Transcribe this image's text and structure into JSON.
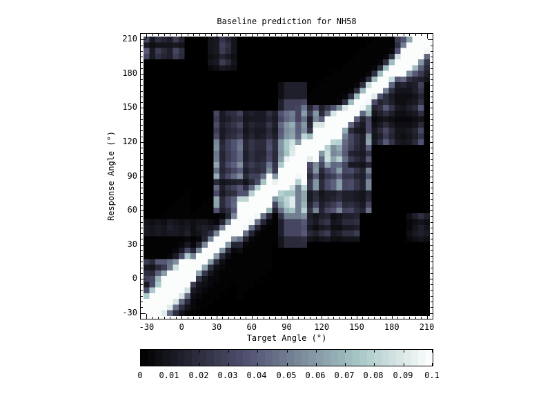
{
  "chart_data": {
    "type": "heatmap",
    "title": "Baseline prediction for NH58",
    "xlabel": "Target Angle (°)",
    "ylabel": "Response Angle (°)",
    "axis_range": [
      -35,
      215
    ],
    "bin_centers": {
      "min": -30,
      "max": 210,
      "step": 5,
      "count": 49
    },
    "major_ticks": [
      -30,
      0,
      30,
      60,
      90,
      120,
      150,
      180,
      210
    ],
    "minor_tick_step": 5,
    "value_range": [
      0,
      0.1
    ],
    "grid": false,
    "legend": "colorbar-bottom",
    "colormap": {
      "name": "bone",
      "levels": 40,
      "stops": [
        [
          0.0,
          0.0,
          0.0,
          0.0
        ],
        [
          0.365079,
          0.319444,
          0.319444,
          0.444444
        ],
        [
          0.746032,
          0.652778,
          0.777778,
          0.777778
        ],
        [
          1.0,
          1.0,
          1.0,
          1.0
        ]
      ]
    },
    "colorbar": {
      "tick_values": [
        0,
        0.01,
        0.02,
        0.03,
        0.04,
        0.05,
        0.06,
        0.07,
        0.08,
        0.09,
        0.1
      ],
      "tick_labels": [
        "0",
        "0.01",
        "0.02",
        "0.03",
        "0.04",
        "0.05",
        "0.06",
        "0.07",
        "0.08",
        "0.09",
        "0.1"
      ]
    },
    "model": {
      "note": "synthesis of the 49x49 probability matrix: bright identity ridge response=target plus clutter regions",
      "ridge": [
        {
          "t0": -35.0,
          "t1": 7.5,
          "amp": 0.21,
          "sigma": 10.5,
          "offset": 0
        },
        {
          "t0": 7.5,
          "t1": 47.5,
          "amp": 0.15,
          "sigma": 7.0,
          "offset": 0
        },
        {
          "t0": 47.5,
          "t1": 77.5,
          "amp": 0.19,
          "sigma": 9.5,
          "offset": 1
        },
        {
          "t0": 77.5,
          "t1": 97.5,
          "amp": 0.115,
          "sigma": 6.5,
          "offset": 0
        },
        {
          "t0": 97.5,
          "t1": 132.5,
          "amp": 0.165,
          "sigma": 7.0,
          "offset": 4
        },
        {
          "t0": 132.5,
          "t1": 187.5,
          "amp": 0.15,
          "sigma": 6.5,
          "offset": 2
        },
        {
          "t0": 187.5,
          "t1": 215.0,
          "amp": 0.185,
          "sigma": 8.0,
          "offset": 0
        }
      ],
      "lower_shoulder": {
        "t_max": 55,
        "depth": 42,
        "amp": 0.032
      },
      "column": {
        "t0": 88,
        "t1": 107,
        "feather": 7.5,
        "feather_gain": 0.45,
        "bands": [
          {
            "r0": 160,
            "r1": 175,
            "v": 0.015
          },
          {
            "r0": 140,
            "r1": 160,
            "v": 0.03
          },
          {
            "r0": 125,
            "r1": 140,
            "v": 0.042
          },
          {
            "r0": 110,
            "r1": 125,
            "v": 0.05
          },
          {
            "r0": 97,
            "r1": 110,
            "v": 0.06
          },
          {
            "r0": 85,
            "r1": 97,
            "v": 0.075
          },
          {
            "r0": 55,
            "r1": 85,
            "v": 0.05
          },
          {
            "r0": 40,
            "r1": 55,
            "v": 0.032
          },
          {
            "r0": 28,
            "r1": 40,
            "v": 0.018
          }
        ]
      },
      "clutter": [
        {
          "t0": 27.5,
          "t1": 95.0,
          "r0": 57.5,
          "r1": 147.5,
          "base": 0.005,
          "amp": 0.035,
          "seed": 7
        },
        {
          "t0": 102.5,
          "t1": 162.5,
          "r0": 57.5,
          "r1": 152.5,
          "base": 0.007,
          "amp": 0.036,
          "seed": 13
        },
        {
          "t0": 112.5,
          "t1": 142.5,
          "r0": 97.5,
          "r1": 142.5,
          "base": 0.01,
          "amp": 0.042,
          "seed": 57
        },
        {
          "t0": 102.5,
          "t1": 150.0,
          "r0": 32.5,
          "r1": 57.5,
          "base": 0.003,
          "amp": 0.018,
          "seed": 21
        },
        {
          "t0": 157.5,
          "t1": 207.5,
          "r0": 117.5,
          "r1": 172.5,
          "base": 0.003,
          "amp": 0.02,
          "seed": 29
        },
        {
          "t0": -32.5,
          "t1": 12.5,
          "r0": -2.5,
          "r1": 17.5,
          "base": 0.004,
          "amp": 0.028,
          "seed": 37
        },
        {
          "t0": 22.5,
          "t1": 47.5,
          "r0": 182.5,
          "r1": 212.5,
          "base": 0.003,
          "amp": 0.016,
          "seed": 43
        },
        {
          "t0": -32.5,
          "t1": 2.5,
          "r0": 192.5,
          "r1": 212.5,
          "base": 0.006,
          "amp": 0.022,
          "seed": 51
        },
        {
          "t0": 182.5,
          "t1": 212.5,
          "r0": 172.5,
          "r1": 212.5,
          "base": 0.007,
          "amp": 0.032,
          "seed": 63
        },
        {
          "t0": -32.5,
          "t1": 27.5,
          "r0": 37.5,
          "r1": 52.5,
          "base": 0.003,
          "amp": 0.012,
          "seed": 71
        },
        {
          "t0": 192.5,
          "t1": 212.5,
          "r0": 32.5,
          "r1": 57.5,
          "base": 0.002,
          "amp": 0.014,
          "seed": 77
        }
      ],
      "noise_gain": 1.8
    }
  }
}
